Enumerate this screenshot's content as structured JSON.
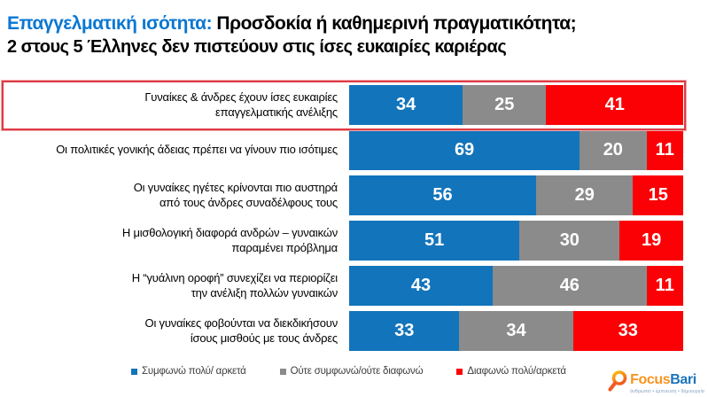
{
  "title": {
    "highlight": "Επαγγελματική ισότητα:",
    "rest": " Προσδοκία ή καθημερινή πραγματικότητα;",
    "subtitle": "2 στους 5 Έλληνες δεν πιστεύουν στις ίσες ευκαιρίες καριέρας"
  },
  "chart_data": {
    "type": "bar",
    "orientation": "horizontal",
    "stacked": true,
    "unit": "percent",
    "xlim": [
      0,
      100
    ],
    "legend_position": "bottom",
    "highlighted_row": 0,
    "categories": [
      "Γυναίκες & άνδρες έχουν ίσες ευκαιρίες\nεπαγγελματικής ανέλιξης",
      "Οι πολιτικές γονικής άδειας πρέπει να γίνουν πιο ισότιμες",
      "Οι γυναίκες ηγέτες κρίνονται πιο αυστηρά\nαπό τους άνδρες συναδέλφους τους",
      "Η μισθολογική διαφορά ανδρών – γυναικών\nπαραμένει πρόβλημα",
      "Η “γυάλινη οροφή” συνεχίζει να περιορίζει\nτην ανέλιξη πολλών γυναικών",
      "Οι γυναίκες φοβούνται να διεκδικήσουν\nίσους μισθούς με τους άνδρες"
    ],
    "series": [
      {
        "name": "Συμφωνώ πολύ/ αρκετά",
        "color": "#1274bb",
        "values": [
          34,
          69,
          56,
          51,
          43,
          33
        ]
      },
      {
        "name": "Ούτε συμφωνώ/ούτε διαφωνώ",
        "color": "#8b8b8b",
        "values": [
          25,
          20,
          29,
          30,
          46,
          34
        ]
      },
      {
        "name": "Διαφωνώ πολύ/αρκετά",
        "color": "#fb0105",
        "values": [
          41,
          11,
          15,
          19,
          11,
          33
        ]
      }
    ]
  },
  "colors": {
    "title_accent": "#0b77d2",
    "highlight_border": "#dd3b43",
    "bar_blue": "#1274bb",
    "bar_gray": "#8b8b8b",
    "bar_red": "#fb0105"
  },
  "logo": {
    "focus": "Focus",
    "bari": "Bari",
    "tagline": "άνθρωποι • έμπνευση • δημιουργία"
  }
}
